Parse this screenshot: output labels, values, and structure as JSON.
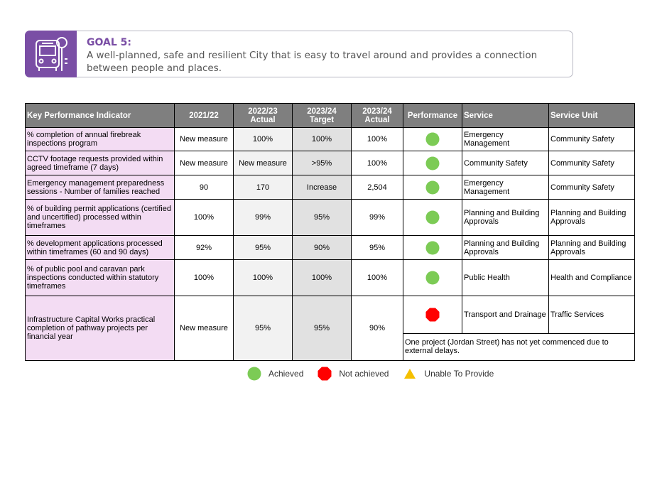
{
  "header": {
    "title": "GOAL 5:",
    "text": "A well-planned, safe and resilient City that is easy to travel around and provides a connection between people and places."
  },
  "table": {
    "columns": [
      "Key Performance Indicator",
      "2021/22",
      "2022/23\nActual",
      "2023/24\nTarget",
      "2023/24\nActual",
      "Performance",
      "Service",
      "Service Unit"
    ],
    "rows": [
      {
        "cells": [
          "% completion of annual firebreak inspections program",
          "New measure",
          "100%",
          "100%",
          "100%"
        ],
        "color": "#7ccb55",
        "service": "Emergency Management",
        "unit": "Community Safety"
      },
      {
        "cells": [
          "CCTV footage requests provided within agreed timeframe (7 days)",
          "New measure",
          "New measure",
          ">95%",
          "100%"
        ],
        "color": "#7ccb55",
        "service": "Community Safety",
        "unit": "Community Safety"
      },
      {
        "cells": [
          "Emergency management preparedness sessions - Number of families reached",
          "90",
          "170",
          "Increase",
          "2,504"
        ],
        "color": "#7ccb55",
        "service": "Emergency Management",
        "unit": "Community Safety"
      },
      {
        "cells": [
          "% of building permit applications (certified and uncertified) processed within timeframes",
          "100%",
          "99%",
          "95%",
          "99%"
        ],
        "color": "#7ccb55",
        "service": "Planning and Building Approvals",
        "unit": "Planning and Building Approvals"
      },
      {
        "cells": [
          "% development applications processed within timeframes (60 and 90 days)",
          "92%",
          "95%",
          "90%",
          "95%"
        ],
        "color": "#7ccb55",
        "service": "Planning and Building Approvals",
        "unit": "Planning and Building Approvals"
      },
      {
        "cells": [
          "% of public pool and caravan park inspections conducted within statutory timeframes",
          "100%",
          "100%",
          "100%",
          "100%"
        ],
        "color": "#7ccb55",
        "service": "Public Health",
        "unit": "Health and Compliance"
      },
      {
        "cells": [
          "Infrastructure Capital Works practical completion of pathway projects per financial year",
          "New measure",
          "95%",
          "95%",
          "90%"
        ],
        "color": "#ff0000",
        "service": "Transport and Drainage",
        "unit": "Traffic Services",
        "note": "One project (Jordan Street) has not yet commenced due to external delays."
      }
    ]
  },
  "legend": [
    {
      "label": "Achieved",
      "color": "#7ccb55"
    },
    {
      "label": "Not achieved",
      "color": "#ff0000"
    },
    {
      "label": "Unable To Provide",
      "color": "#f5c000"
    }
  ]
}
